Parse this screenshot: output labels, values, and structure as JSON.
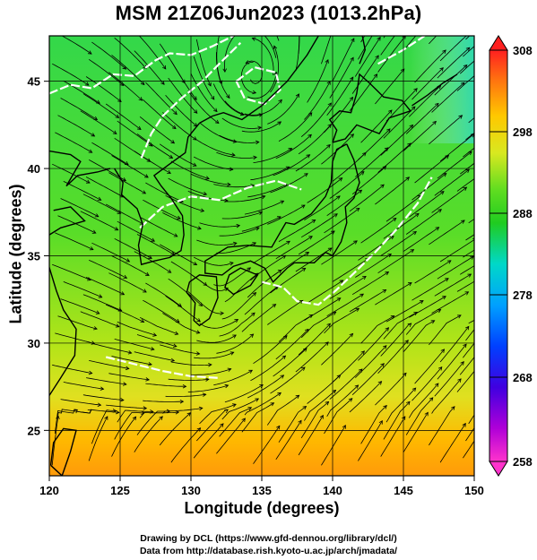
{
  "title": "MSM 21Z06Jun2023 (1013.2hPa)",
  "xlabel": "Longitude (degrees)",
  "ylabel": "Latitude  (degrees)",
  "footer": {
    "line1": "Drawing by DCL (https://www.gfd-dennou.org/library/dcl/)",
    "line2": "Data from http://database.rish.kyoto-u.ac.jp/arch/jmadata/"
  },
  "map": {
    "lon_range": [
      120,
      150
    ],
    "lat_range": [
      22.4,
      47.6
    ],
    "lon_ticks": [
      120,
      125,
      130,
      135,
      140,
      145,
      150
    ],
    "lon_tick_labels": [
      "120",
      "125",
      "130",
      "135",
      "140",
      "145",
      "150"
    ],
    "lat_ticks": [
      25,
      30,
      35,
      40,
      45
    ],
    "lat_tick_labels": [
      "25",
      "30",
      "35",
      "40",
      "45"
    ],
    "grid": true
  },
  "colorbar": {
    "min": 258,
    "max": 308,
    "tick_labels": [
      "308",
      "298",
      "288",
      "278",
      "268",
      "258"
    ],
    "tick_values": [
      308,
      298,
      288,
      278,
      268,
      258
    ]
  },
  "colors": {
    "land_line": "#000000",
    "contour": "#ffffff",
    "grid": "#000000"
  }
}
